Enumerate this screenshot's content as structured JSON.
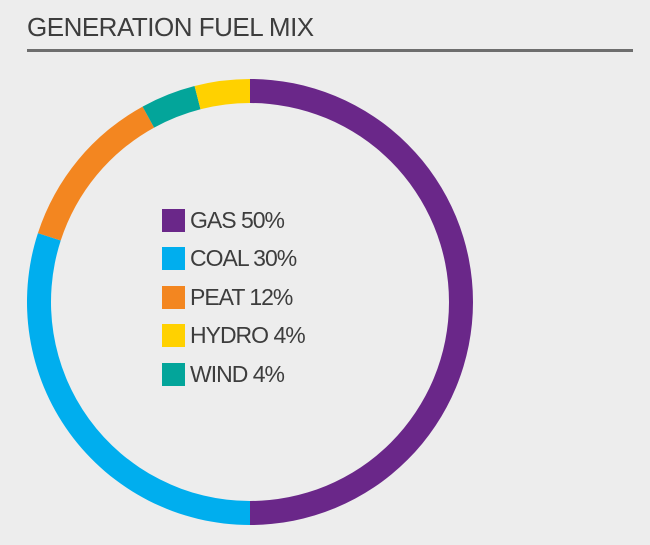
{
  "title": "GENERATION FUEL MIX",
  "chart_data": {
    "type": "pie",
    "style": "donut",
    "categories": [
      "GAS",
      "COAL",
      "PEAT",
      "HYDRO",
      "WIND"
    ],
    "values": [
      50,
      30,
      12,
      4,
      4
    ],
    "unit": "%",
    "start_angle_degrees": 0,
    "direction": "clockwise",
    "segment_order": [
      "GAS",
      "COAL",
      "PEAT",
      "WIND",
      "HYDRO"
    ],
    "colors": {
      "GAS": "#6a2789",
      "COAL": "#00aeee",
      "PEAT": "#f38620",
      "HYDRO": "#ffd100",
      "WIND": "#03a59a"
    },
    "legend": [
      {
        "key": "GAS",
        "label": "GAS 50%"
      },
      {
        "key": "COAL",
        "label": "COAL 30%"
      },
      {
        "key": "PEAT",
        "label": "PEAT 12%"
      },
      {
        "key": "HYDRO",
        "label": "HYDRO 4%"
      },
      {
        "key": "WIND",
        "label": "WIND 4%"
      }
    ],
    "legend_placement": "center"
  }
}
